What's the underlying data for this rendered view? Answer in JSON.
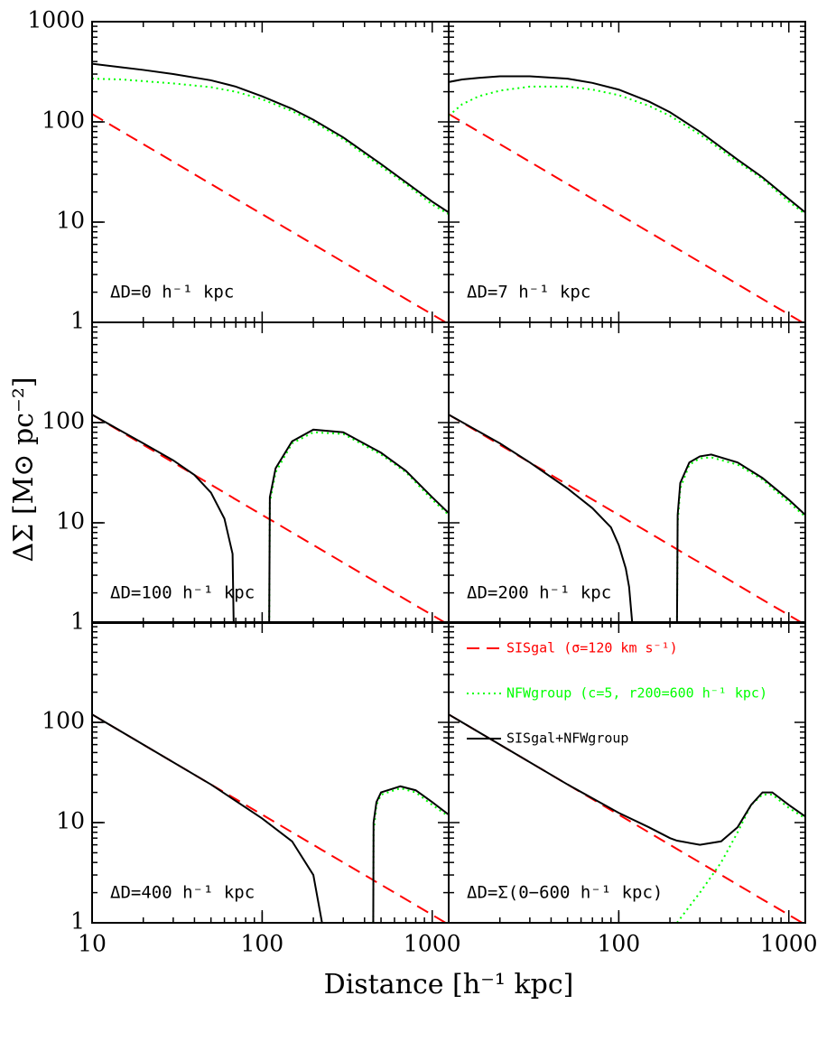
{
  "xlabel": "Distance [h⁻¹ kpc]",
  "ylabel": "ΔΣ [M⊙ pc⁻²]",
  "chart_data": [
    {
      "type": "line",
      "annotation": "ΔD=0 h⁻¹ kpc",
      "xscale": "log",
      "yscale": "log",
      "xlim": [
        10,
        1250
      ],
      "ylim": [
        1,
        1000
      ],
      "yticks": [
        1,
        10,
        100,
        1000
      ],
      "x": [
        10,
        15,
        20,
        30,
        50,
        70,
        100,
        150,
        200,
        300,
        500,
        700,
        1000,
        1250
      ],
      "series": [
        {
          "color": "#ff0000",
          "dash": "dashed",
          "values": [
            120,
            80,
            60,
            40,
            24,
            17.1,
            12,
            8,
            6,
            4,
            2.4,
            1.71,
            1.2,
            0.96
          ]
        },
        {
          "color": "#00ff00",
          "dash": "dotted",
          "values": [
            270,
            265,
            255,
            242,
            222,
            200,
            168,
            128,
            100,
            67,
            36,
            24,
            15,
            12
          ]
        },
        {
          "color": "#000000",
          "dash": "solid",
          "values": [
            380,
            350,
            330,
            300,
            260,
            225,
            180,
            135,
            105,
            70,
            38,
            25,
            16,
            12.5
          ]
        }
      ]
    },
    {
      "type": "line",
      "annotation": "ΔD=7 h⁻¹ kpc",
      "xscale": "log",
      "yscale": "log",
      "xlim": [
        10,
        1250
      ],
      "ylim": [
        1,
        1000
      ],
      "x": [
        10,
        12,
        15,
        20,
        30,
        50,
        70,
        100,
        150,
        200,
        300,
        500,
        700,
        1000,
        1250
      ],
      "series": [
        {
          "color": "#ff0000",
          "dash": "dashed",
          "values": [
            120,
            100,
            80,
            60,
            40,
            24,
            17.1,
            12,
            8,
            6,
            4,
            2.4,
            1.71,
            1.2,
            0.96
          ]
        },
        {
          "color": "#00ff00",
          "dash": "dotted",
          "values": [
            115,
            150,
            180,
            205,
            225,
            225,
            210,
            185,
            145,
            115,
            75,
            40,
            27,
            16,
            12
          ]
        },
        {
          "color": "#000000",
          "dash": "solid",
          "values": [
            250,
            265,
            275,
            285,
            285,
            270,
            245,
            210,
            160,
            125,
            80,
            42,
            28,
            17,
            12.5
          ]
        }
      ]
    },
    {
      "type": "line",
      "annotation": "ΔD=100 h⁻¹ kpc",
      "xscale": "log",
      "yscale": "log",
      "xlim": [
        10,
        1250
      ],
      "ylim": [
        1,
        1000
      ],
      "yticks": [
        1,
        10,
        100
      ],
      "x": [
        10,
        20,
        30,
        40,
        50,
        60,
        67,
        68,
        90,
        110,
        111,
        120,
        150,
        200,
        300,
        500,
        700,
        1000,
        1250
      ],
      "series": [
        {
          "color": "#ff0000",
          "dash": "dashed",
          "values": [
            120,
            60,
            40,
            30,
            24,
            20,
            17.9,
            17.6,
            13.3,
            10.9,
            10.8,
            10,
            8,
            6,
            4,
            2.4,
            1.71,
            1.2,
            0.96
          ]
        },
        {
          "color": "#00ff00",
          "dash": "dotted",
          "values": [
            null,
            null,
            null,
            null,
            null,
            null,
            null,
            null,
            null,
            1,
            16,
            32,
            62,
            80,
            77,
            48,
            32,
            17,
            12
          ]
        },
        {
          "color": "#000000",
          "dash": "solid",
          "values": [
            120,
            62,
            42,
            30,
            20,
            11,
            4.9,
            1,
            null,
            1,
            18,
            35,
            65,
            85,
            80,
            50,
            33,
            18,
            12.5
          ]
        }
      ]
    },
    {
      "type": "line",
      "annotation": "ΔD=200 h⁻¹ kpc",
      "xscale": "log",
      "yscale": "log",
      "xlim": [
        10,
        1250
      ],
      "ylim": [
        1,
        1000
      ],
      "x": [
        10,
        20,
        30,
        50,
        70,
        90,
        100,
        110,
        115,
        120,
        170,
        220,
        222,
        230,
        260,
        300,
        350,
        500,
        700,
        1000,
        1250
      ],
      "series": [
        {
          "color": "#ff0000",
          "dash": "dashed",
          "values": [
            120,
            60,
            40,
            24,
            17.1,
            13.3,
            12,
            10.9,
            10.4,
            10,
            7.06,
            5.45,
            5.4,
            5.2,
            4.6,
            4,
            3.43,
            2.4,
            1.71,
            1.2,
            0.96
          ]
        },
        {
          "color": "#00ff00",
          "dash": "dotted",
          "values": [
            null,
            null,
            null,
            null,
            null,
            null,
            null,
            null,
            null,
            null,
            null,
            1,
            10,
            22,
            38,
            44,
            45,
            38,
            27,
            16,
            11.5
          ]
        },
        {
          "color": "#000000",
          "dash": "solid",
          "values": [
            120,
            62,
            40,
            22,
            14,
            9,
            6,
            3.5,
            2.3,
            1,
            null,
            1,
            12,
            25,
            40,
            46,
            48,
            40,
            28,
            17,
            12
          ]
        }
      ]
    },
    {
      "type": "line",
      "annotation": "ΔD=400 h⁻¹ kpc",
      "xscale": "log",
      "yscale": "log",
      "xlim": [
        10,
        1250
      ],
      "ylim": [
        1,
        1000
      ],
      "yticks": [
        1,
        10,
        100
      ],
      "xticks": [
        10,
        100,
        1000
      ],
      "x": [
        10,
        20,
        50,
        100,
        150,
        200,
        225,
        300,
        450,
        452,
        470,
        500,
        650,
        800,
        1000,
        1250
      ],
      "series": [
        {
          "color": "#ff0000",
          "dash": "dashed",
          "values": [
            120,
            60,
            24,
            12,
            8,
            6,
            5.33,
            4,
            2.67,
            2.65,
            2.55,
            2.4,
            1.85,
            1.5,
            1.2,
            0.96
          ]
        },
        {
          "color": "#00ff00",
          "dash": "dotted",
          "values": [
            null,
            null,
            null,
            null,
            null,
            null,
            null,
            null,
            1,
            8,
            15,
            19,
            22,
            20,
            15,
            11.5
          ]
        },
        {
          "color": "#000000",
          "dash": "solid",
          "values": [
            120,
            60,
            24,
            11,
            6.5,
            3,
            1,
            null,
            1,
            10,
            16,
            20,
            23,
            21,
            16,
            12
          ]
        }
      ]
    },
    {
      "type": "line",
      "annotation": "ΔD=Σ(0−600 h⁻¹ kpc)",
      "xscale": "log",
      "yscale": "log",
      "xlim": [
        10,
        1250
      ],
      "ylim": [
        1,
        1000
      ],
      "xticks": [
        100,
        1000
      ],
      "legend": "upper left",
      "x": [
        10,
        20,
        50,
        100,
        150,
        200,
        220,
        300,
        400,
        500,
        600,
        700,
        800,
        1000,
        1250
      ],
      "series": [
        {
          "name": "SISgal (σ=120 km s⁻¹)",
          "color": "#ff0000",
          "dash": "dashed",
          "values": [
            120,
            60,
            24,
            12,
            8,
            6,
            5.45,
            4,
            3,
            2.4,
            2,
            1.71,
            1.5,
            1.2,
            0.96
          ]
        },
        {
          "name": "NFWgroup (c=5, r200=600 h⁻¹ kpc)",
          "color": "#00ff00",
          "dash": "dotted",
          "values": [
            null,
            null,
            null,
            null,
            null,
            null,
            1,
            2,
            4,
            8,
            15,
            19,
            19,
            14,
            11
          ]
        },
        {
          "name": "SISgal+NFWgroup",
          "color": "#000000",
          "dash": "solid",
          "values": [
            120,
            60,
            24,
            12.5,
            9,
            7,
            6.6,
            6,
            6.5,
            9,
            15,
            20,
            20,
            15,
            11.5
          ]
        }
      ]
    }
  ]
}
